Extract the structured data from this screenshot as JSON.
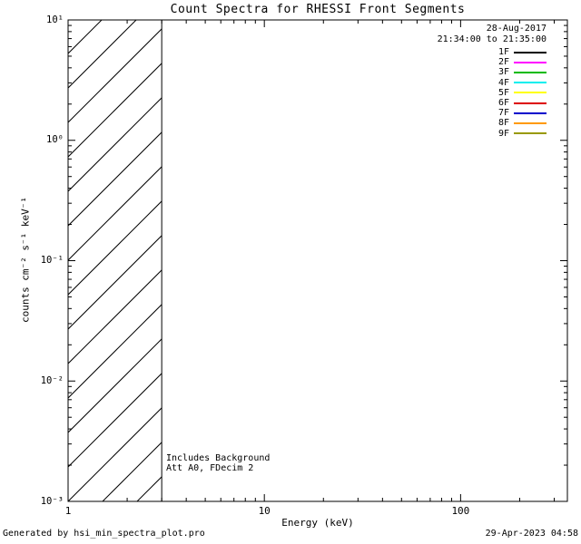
{
  "chart_data": {
    "type": "line",
    "title": "Count Spectra for RHESSI Front Segments",
    "xlabel": "Energy (keV)",
    "ylabel": "counts cm⁻² s⁻¹ keV⁻¹",
    "xscale": "log",
    "yscale": "log",
    "xlim": [
      1,
      350
    ],
    "ylim": [
      0.001,
      10
    ],
    "x_tick_values": [
      1,
      10,
      100
    ],
    "x_tick_labels": [
      "1",
      "10",
      "100"
    ],
    "y_tick_values": [
      10,
      1,
      0.1,
      0.01,
      0.001
    ],
    "y_tick_labels": [
      "10¹",
      "10⁰",
      "10⁻¹",
      "10⁻²",
      "10⁻³"
    ],
    "grid": false,
    "series": [],
    "hatched_region": {
      "x_start": 1,
      "x_end": 3,
      "style": "diagonal-hatch-full-height"
    },
    "legend": {
      "position": "top-right",
      "date": "28-Aug-2017",
      "time_range": "21:34:00 to 21:35:00",
      "entries": [
        {
          "label": "1F",
          "color": "#000000"
        },
        {
          "label": "2F",
          "color": "#ff00ff"
        },
        {
          "label": "3F",
          "color": "#00bb00"
        },
        {
          "label": "4F",
          "color": "#00eeee"
        },
        {
          "label": "5F",
          "color": "#ffff00"
        },
        {
          "label": "6F",
          "color": "#dd0000"
        },
        {
          "label": "7F",
          "color": "#0000cc"
        },
        {
          "label": "8F",
          "color": "#ff9900"
        },
        {
          "label": "9F",
          "color": "#999900"
        }
      ]
    },
    "annotations": [
      "Includes Background",
      "Att A0, FDecim 2"
    ]
  },
  "footer": {
    "generated_by": "Generated by hsi_min_spectra_plot.pro",
    "timestamp": "29-Apr-2023 04:58"
  }
}
